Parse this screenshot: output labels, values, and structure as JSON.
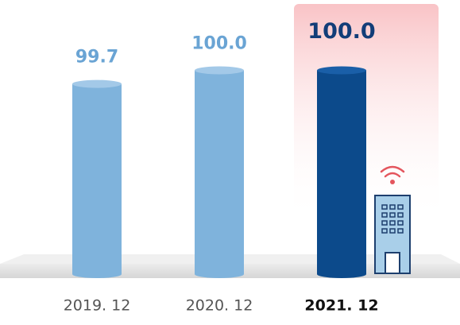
{
  "chart_data": {
    "type": "bar",
    "categories": [
      "2019. 12",
      "2020. 12",
      "2021. 12"
    ],
    "values": [
      99.7,
      100.0,
      100.0
    ],
    "value_labels": [
      "99.7",
      "100.0",
      "100.0"
    ],
    "colors": [
      "#7fb3dc",
      "#7fb3dc",
      "#0c4a8b"
    ],
    "highlight": 2,
    "ylim": [
      95.5,
      101.5
    ]
  }
}
